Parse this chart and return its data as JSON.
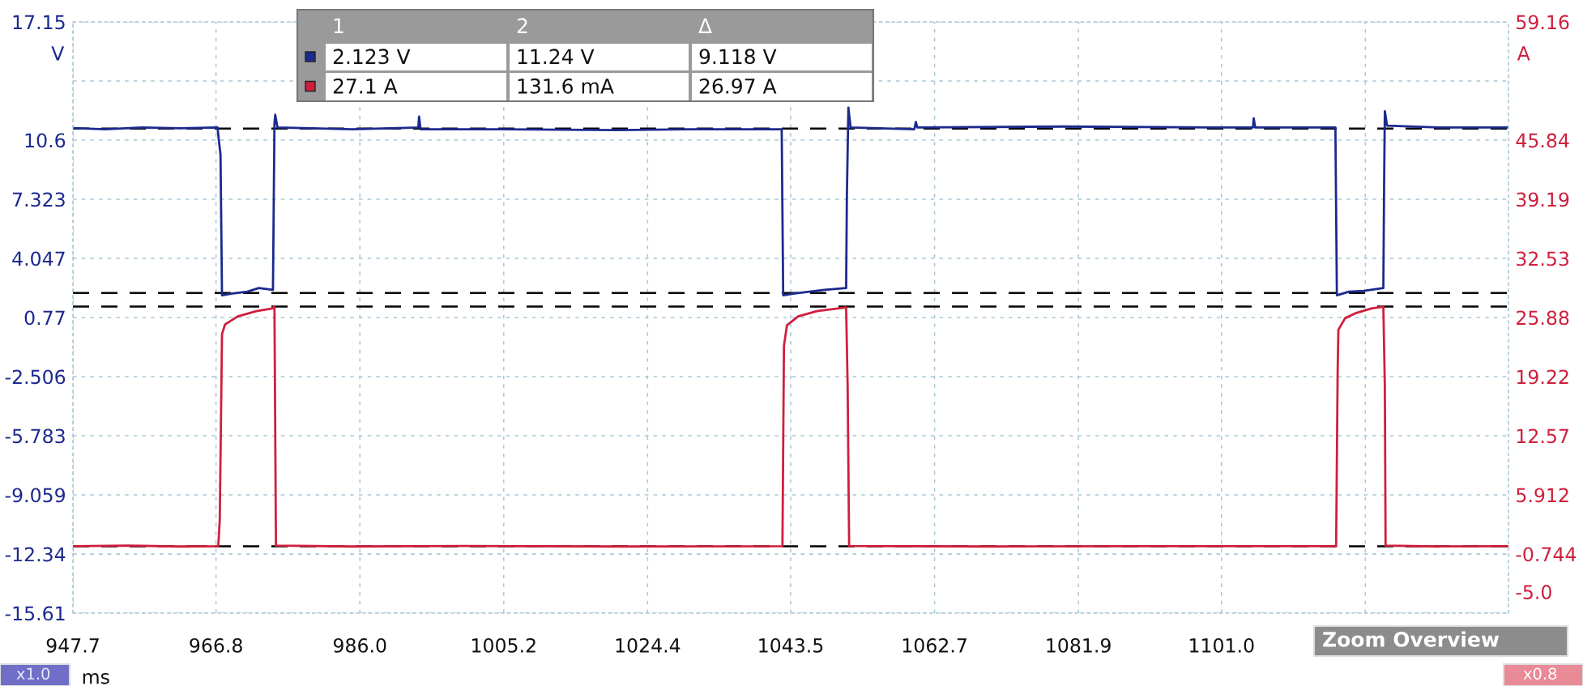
{
  "chart_data": {
    "type": "line",
    "xlabel": "ms",
    "ylabel": "V",
    "y2label": "A",
    "xlim": [
      947.7,
      1139.3
    ],
    "xticks": [
      947.7,
      966.8,
      {
        "value": 986.0,
        "label": "986.0"
      },
      1005.2,
      1024.4,
      1043.5,
      1062.7,
      1081.9,
      {
        "value": 1101.0,
        "label": "1101.0"
      },
      {
        "value": 1120.2,
        "label": null
      }
    ],
    "ylim": [
      -15.61,
      17.15
    ],
    "yticks": [
      -15.61,
      -12.34,
      -9.059,
      -5.783,
      -2.506,
      0.77,
      4.047,
      7.323,
      10.6,
      {
        "value": 13.87,
        "label": null
      },
      17.15
    ],
    "y2lim": [
      -7.4,
      59.16
    ],
    "y2ticks": [
      {
        "value": -5.0,
        "label": "-5.0"
      },
      -0.744,
      5.912,
      12.57,
      19.22,
      25.88,
      32.53,
      39.19,
      45.84,
      {
        "value": 52.5,
        "label": null
      },
      59.16
    ],
    "grid": true,
    "legend": false,
    "line_style": "solid",
    "marker": "none",
    "series": [
      {
        "color": "#1c2a8e",
        "x": [
          947.7,
          952,
          957,
          962,
          967.0,
          967.2,
          967.4,
          967.6,
          969,
          971,
          972.5,
          974.4,
          974.6,
          974.7,
          975.0,
          985,
          993.8,
          993.9,
          994.1,
          1005,
          1020,
          1030,
          1042.3,
          1042.5,
          1044,
          1046,
          1048,
          1050.9,
          1051.0,
          1051.2,
          1051.5,
          1060,
          1060.2,
          1060.4,
          1080,
          1100,
          1105.2,
          1105.3,
          1105.5,
          1116.2,
          1116.4,
          1118,
          1120,
          1122.6,
          1122.7,
          1122.8,
          1123.1,
          1130,
          1139.3
        ],
        "values": [
          11.27,
          11.2,
          11.3,
          11.25,
          11.3,
          10.5,
          9.8,
          2.0,
          2.1,
          2.2,
          2.4,
          2.3,
          11.5,
          12.0,
          11.3,
          11.2,
          11.3,
          11.9,
          11.2,
          11.2,
          11.15,
          11.2,
          11.2,
          2.0,
          2.1,
          2.2,
          2.3,
          2.4,
          7.5,
          12.4,
          11.3,
          11.2,
          11.6,
          11.3,
          11.35,
          11.3,
          11.3,
          11.8,
          11.3,
          11.3,
          2.0,
          2.2,
          2.25,
          2.4,
          8.0,
          12.2,
          11.4,
          11.3,
          11.3
        ]
      },
      {
        "color": "#cf1f3c",
        "axis": "y2",
        "x": [
          947.7,
          955,
          962,
          967.1,
          967.3,
          967.6,
          968.0,
          969.7,
          972.2,
          974.3,
          974.6,
          974.8,
          985,
          1000,
          1020,
          1042.4,
          1042.6,
          1043.0,
          1044.5,
          1047,
          1050.9,
          1051.1,
          1051.3,
          1070,
          1090,
          1116.3,
          1116.5,
          1116.6,
          1117.5,
          1119,
          1121,
          1122.6,
          1122.8,
          1122.9,
          1130,
          1139.3
        ],
        "values": [
          0.13,
          0.2,
          0.1,
          0.13,
          3.1,
          24.0,
          25.1,
          26.0,
          26.6,
          26.9,
          27.1,
          0.2,
          0.1,
          0.15,
          0.1,
          0.13,
          22.7,
          25.0,
          26.0,
          26.6,
          27.0,
          18.2,
          0.15,
          0.1,
          0.13,
          0.13,
          19.6,
          24.5,
          25.8,
          26.4,
          26.9,
          27.1,
          18.1,
          0.2,
          0.1,
          0.13
        ]
      }
    ],
    "ref_lines": [
      {
        "axis": "y",
        "value": 11.24,
        "color": "#000000",
        "line_style": "dashed"
      },
      {
        "axis": "y",
        "value": 2.123,
        "color": "#000000",
        "line_style": "dashed"
      },
      {
        "axis": "y2",
        "value": 27.1,
        "color": "#000000",
        "line_style": "dashed"
      },
      {
        "axis": "y2",
        "value": 0.1316,
        "color": "#000000",
        "line_style": "dashed"
      }
    ],
    "annotations": [
      "1",
      "2",
      "Δ",
      "2.123 V",
      "11.24 V",
      "9.118 V",
      "27.1 A",
      "131.6 mA",
      "26.97 A",
      "Zoom Overview",
      "x1.0",
      "x0.8"
    ]
  }
}
